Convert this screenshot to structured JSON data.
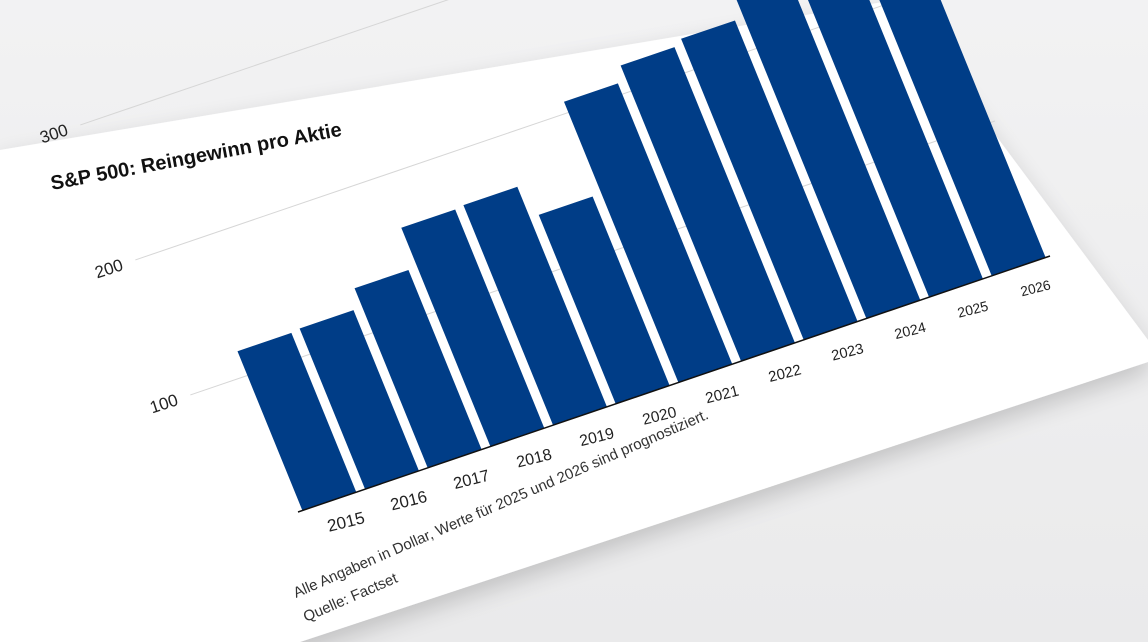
{
  "chart_data": {
    "type": "bar",
    "title": "S&P 500: Reingewinn pro Aktie",
    "categories": [
      "2015",
      "2016",
      "2017",
      "2018",
      "2019",
      "2020",
      "2021",
      "2022",
      "2023",
      "2024",
      "2025",
      "2026"
    ],
    "values": [
      118,
      119,
      133,
      162,
      163,
      140,
      208,
      219,
      223,
      241,
      268,
      305
    ],
    "ylim": [
      0,
      340
    ],
    "yticks": [
      "100",
      "200",
      "300"
    ],
    "ytick_values": [
      100,
      200,
      300
    ],
    "grid": true,
    "bar_color": "#003d87",
    "footnote": "Alle Angaben in Dollar, Werte für 2025 und 2026 sind prognostiziert.",
    "source": "Quelle: Factset"
  }
}
